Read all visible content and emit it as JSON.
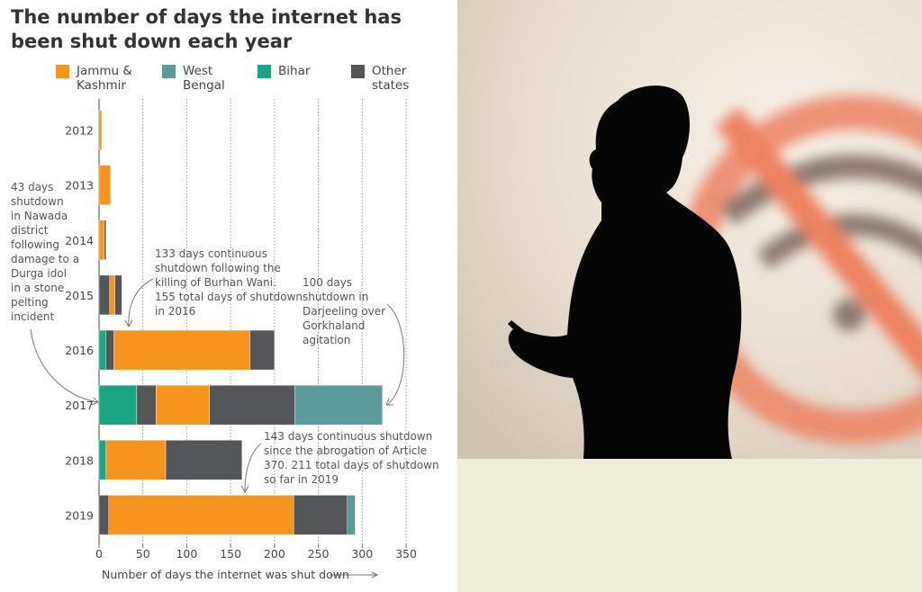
{
  "chart_data": {
    "type": "bar",
    "orientation": "horizontal",
    "stacked": true,
    "title": "The number of days the internet has been shut down each year",
    "xlabel": "Number of days the internet was shut down",
    "categories": [
      "2012",
      "2013",
      "2014",
      "2015",
      "2016",
      "2017",
      "2018",
      "2019"
    ],
    "series": [
      {
        "name": "Jammu & Kashmir",
        "color": "#f7941d"
      },
      {
        "name": "West Bengal",
        "color": "#5a9a98"
      },
      {
        "name": "Bihar",
        "color": "#1aa583"
      },
      {
        "name": "Other states",
        "color": "#55565a"
      }
    ],
    "bars": [
      [
        {
          "series": 0,
          "value": 3
        }
      ],
      [
        {
          "series": 0,
          "value": 13
        }
      ],
      [
        {
          "series": 0,
          "value": 6
        },
        {
          "series": 3,
          "value": 2
        }
      ],
      [
        {
          "series": 3,
          "value": 12
        },
        {
          "series": 0,
          "value": 6
        },
        {
          "series": 3,
          "value": 8
        }
      ],
      [
        {
          "series": 2,
          "value": 8
        },
        {
          "series": 3,
          "value": 9
        },
        {
          "series": 0,
          "value": 155
        },
        {
          "series": 3,
          "value": 28
        }
      ],
      [
        {
          "series": 2,
          "value": 43
        },
        {
          "series": 3,
          "value": 22
        },
        {
          "series": 0,
          "value": 61
        },
        {
          "series": 3,
          "value": 97
        },
        {
          "series": 1,
          "value": 100
        }
      ],
      [
        {
          "series": 2,
          "value": 8
        },
        {
          "series": 0,
          "value": 68
        },
        {
          "series": 3,
          "value": 87
        }
      ],
      [
        {
          "series": 3,
          "value": 11
        },
        {
          "series": 0,
          "value": 211
        },
        {
          "series": 3,
          "value": 61
        },
        {
          "series": 1,
          "value": 9
        }
      ]
    ],
    "xlim": [
      0,
      350
    ],
    "xticks": [
      0,
      50,
      100,
      150,
      200,
      250,
      300,
      350
    ],
    "grid": true,
    "annotations": [
      [
        "43 days",
        "shutdown",
        "in Nawada",
        "district",
        "following",
        "damage to a",
        "Durga idol",
        "in a stone",
        "pelting",
        "incident"
      ],
      [
        "133 days continuous",
        "shutdown following the",
        "killing of Burhan Wani.",
        "155 total days of shutdown",
        "in 2016"
      ],
      [
        "100 days",
        "shutdown in",
        "Darjeeling over",
        "Gorkhaland",
        "agitation"
      ],
      [
        "143 days continuous shutdown",
        "since the abrogation of Article",
        "370. 211 total days of shutdown",
        "so far in 2019"
      ]
    ]
  }
}
